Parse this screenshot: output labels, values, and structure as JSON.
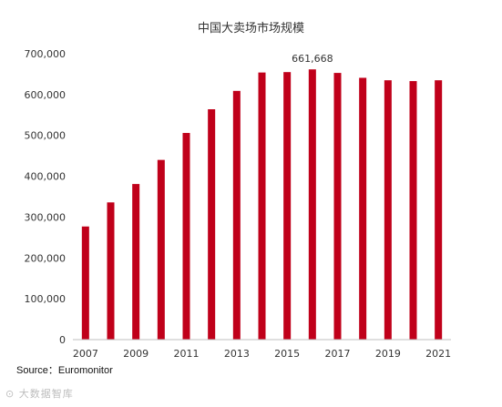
{
  "chart_data": {
    "type": "bar",
    "title": "中国大卖场市场规模",
    "xlabel": "",
    "ylabel": "",
    "categories": [
      "2007",
      "2008",
      "2009",
      "2010",
      "2011",
      "2012",
      "2013",
      "2014",
      "2015",
      "2016",
      "2017",
      "2018",
      "2019",
      "2020",
      "2021"
    ],
    "values": [
      277000,
      336000,
      381000,
      440000,
      506000,
      564000,
      609000,
      654000,
      655000,
      661668,
      653000,
      641000,
      635000,
      633000,
      635000
    ],
    "ylim": [
      0,
      700000
    ],
    "yticks": [
      "0",
      "100,000",
      "200,000",
      "300,000",
      "400,000",
      "500,000",
      "600,000",
      "700,000"
    ],
    "xtick_labels": [
      "2007",
      "",
      "2009",
      "",
      "2011",
      "",
      "2013",
      "",
      "2015",
      "",
      "2017",
      "",
      "2019",
      "",
      "2021"
    ],
    "data_labels": [
      {
        "index": 9,
        "text": "661,668"
      }
    ],
    "bar_color": "#c0001a",
    "grid": false
  },
  "source": "Source：Euromonitor",
  "watermark": "大数据智库"
}
